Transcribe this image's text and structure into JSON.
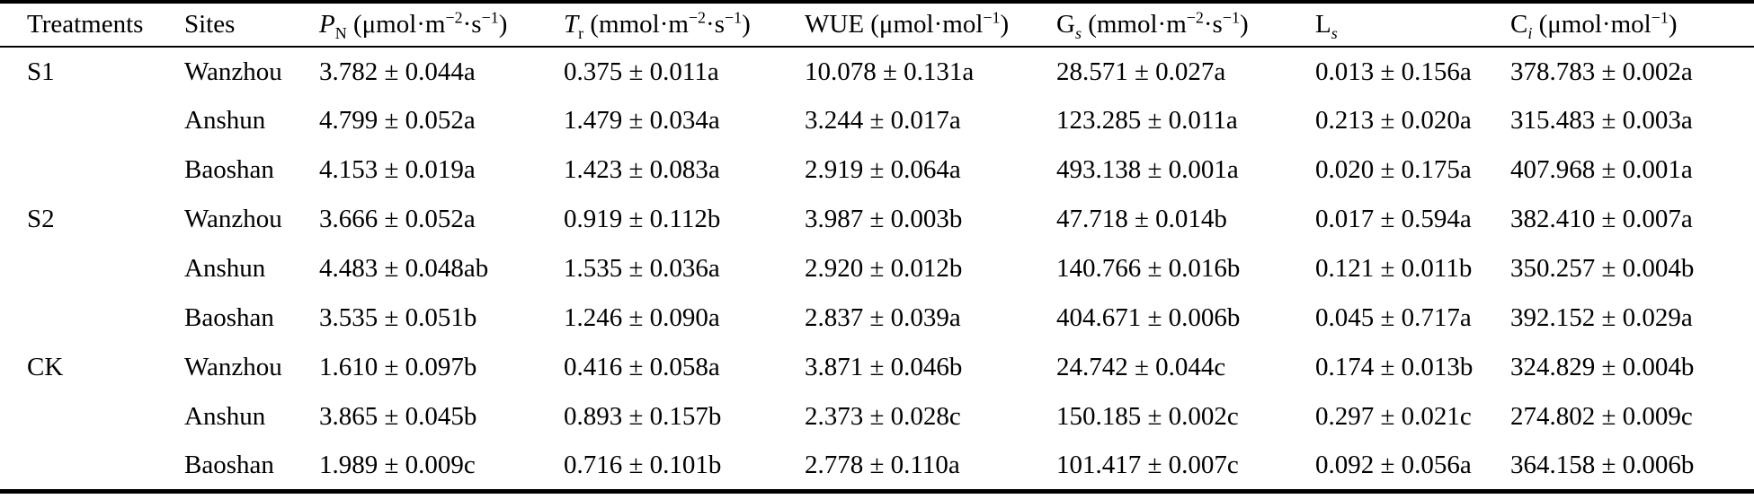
{
  "table": {
    "description": "Photosynthesis gas-exchange parameters table from a scientific paper",
    "columns": [
      {
        "id": "treatments",
        "segments": [
          {
            "t": "Treatments",
            "st": ""
          }
        ]
      },
      {
        "id": "sites",
        "segments": [
          {
            "t": "Sites",
            "st": ""
          }
        ]
      },
      {
        "id": "pn",
        "segments": [
          {
            "t": "P",
            "st": "i"
          },
          {
            "t": "N",
            "st": "sub"
          },
          {
            "t": " (μmol·m",
            "st": ""
          },
          {
            "t": "−2",
            "st": "sup"
          },
          {
            "t": "·s",
            "st": ""
          },
          {
            "t": "−1",
            "st": "sup"
          },
          {
            "t": ")",
            "st": ""
          }
        ]
      },
      {
        "id": "tr",
        "segments": [
          {
            "t": "T",
            "st": "i"
          },
          {
            "t": "r",
            "st": "sub"
          },
          {
            "t": " (mmol·m",
            "st": ""
          },
          {
            "t": "−2",
            "st": "sup"
          },
          {
            "t": "·s",
            "st": ""
          },
          {
            "t": "−1",
            "st": "sup"
          },
          {
            "t": ")",
            "st": ""
          }
        ]
      },
      {
        "id": "wue",
        "segments": [
          {
            "t": "WUE (μmol·mol",
            "st": ""
          },
          {
            "t": "−1",
            "st": "sup"
          },
          {
            "t": ")",
            "st": ""
          }
        ]
      },
      {
        "id": "gs",
        "segments": [
          {
            "t": "G",
            "st": ""
          },
          {
            "t": "s",
            "st": "subi"
          },
          {
            "t": " (mmol·m",
            "st": ""
          },
          {
            "t": "−2",
            "st": "sup"
          },
          {
            "t": "·s",
            "st": ""
          },
          {
            "t": "−1",
            "st": "sup"
          },
          {
            "t": ")",
            "st": ""
          }
        ]
      },
      {
        "id": "ls",
        "segments": [
          {
            "t": "L",
            "st": ""
          },
          {
            "t": "s",
            "st": "subi"
          }
        ]
      },
      {
        "id": "ci",
        "segments": [
          {
            "t": "C",
            "st": ""
          },
          {
            "t": "i",
            "st": "subi"
          },
          {
            "t": " (μmol·mol",
            "st": ""
          },
          {
            "t": "−1",
            "st": "sup"
          },
          {
            "t": ")",
            "st": ""
          }
        ]
      }
    ],
    "rows": [
      {
        "treatment": "S1",
        "site": "Wanzhou",
        "values": [
          "3.782 ± 0.044a",
          "0.375 ± 0.011a",
          "10.078 ± 0.131a",
          "28.571 ± 0.027a",
          "0.013 ± 0.156a",
          "378.783 ± 0.002a"
        ]
      },
      {
        "treatment": "",
        "site": "Anshun",
        "values": [
          "4.799 ± 0.052a",
          "1.479 ± 0.034a",
          "3.244 ± 0.017a",
          "123.285 ± 0.011a",
          "0.213 ± 0.020a",
          "315.483 ± 0.003a"
        ]
      },
      {
        "treatment": "",
        "site": "Baoshan",
        "values": [
          "4.153 ± 0.019a",
          "1.423 ± 0.083a",
          "2.919 ± 0.064a",
          "493.138 ± 0.001a",
          "0.020 ± 0.175a",
          "407.968 ± 0.001a"
        ]
      },
      {
        "treatment": "S2",
        "site": "Wanzhou",
        "values": [
          "3.666 ± 0.052a",
          "0.919 ± 0.112b",
          "3.987 ± 0.003b",
          "47.718 ± 0.014b",
          "0.017 ± 0.594a",
          "382.410 ± 0.007a"
        ]
      },
      {
        "treatment": "",
        "site": "Anshun",
        "values": [
          "4.483 ± 0.048ab",
          "1.535 ± 0.036a",
          "2.920 ± 0.012b",
          "140.766 ± 0.016b",
          "0.121 ± 0.011b",
          "350.257 ± 0.004b"
        ]
      },
      {
        "treatment": "",
        "site": "Baoshan",
        "values": [
          "3.535 ± 0.051b",
          "1.246 ± 0.090a",
          "2.837 ± 0.039a",
          "404.671 ± 0.006b",
          "0.045 ± 0.717a",
          "392.152 ± 0.029a"
        ]
      },
      {
        "treatment": "CK",
        "site": "Wanzhou",
        "values": [
          "1.610 ± 0.097b",
          "0.416 ± 0.058a",
          "3.871 ± 0.046b",
          "24.742 ± 0.044c",
          "0.174 ± 0.013b",
          "324.829 ± 0.004b"
        ]
      },
      {
        "treatment": "",
        "site": "Anshun",
        "values": [
          "3.865 ± 0.045b",
          "0.893 ± 0.157b",
          "2.373 ± 0.028c",
          "150.185 ± 0.002c",
          "0.297 ± 0.021c",
          "274.802 ± 0.009c"
        ]
      },
      {
        "treatment": "",
        "site": "Baoshan",
        "values": [
          "1.989 ± 0.009c",
          "0.716 ± 0.101b",
          "2.778 ± 0.110a",
          "101.417 ± 0.007c",
          "0.092 ± 0.056a",
          "364.158 ± 0.006b"
        ]
      }
    ]
  }
}
